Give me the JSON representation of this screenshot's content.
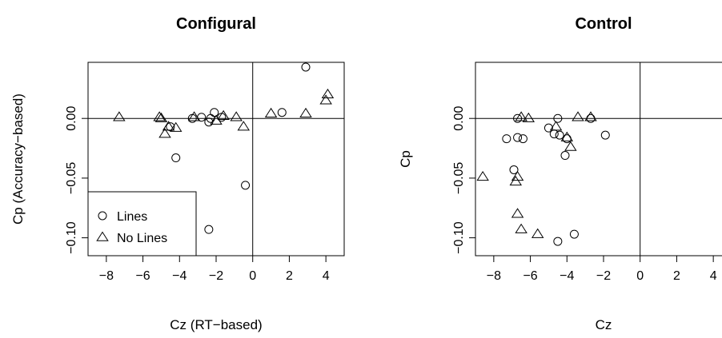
{
  "chart_data": [
    {
      "type": "scatter",
      "title": "Configural",
      "xlabel": "Cz (RT−based)",
      "ylabel": "Cp (Accuracy−based)",
      "xlim": [
        -9,
        5
      ],
      "ylim": [
        -0.115,
        0.047
      ],
      "xticks": [
        -8,
        -6,
        -4,
        -2,
        0,
        2,
        4
      ],
      "xtick_labels": [
        "−8",
        "−6",
        "−4",
        "−2",
        "0",
        "2",
        "4"
      ],
      "yticks": [
        -0.1,
        -0.05,
        0.0
      ],
      "ytick_labels": [
        "−0.10",
        "−0.05",
        "0.00"
      ],
      "reference_lines": {
        "x": 0,
        "y": 0
      },
      "legend": {
        "position": "bottom-left",
        "entries": [
          {
            "label": "Lines",
            "marker": "circle"
          },
          {
            "label": "No Lines",
            "marker": "triangle"
          }
        ]
      },
      "series": [
        {
          "name": "Lines",
          "marker": "circle",
          "points": [
            {
              "x": 2.9,
              "y": 0.043
            },
            {
              "x": 1.6,
              "y": 0.005
            },
            {
              "x": -2.1,
              "y": 0.005
            },
            {
              "x": -2.3,
              "y": 0.0
            },
            {
              "x": -2.4,
              "y": -0.003
            },
            {
              "x": -2.8,
              "y": 0.001
            },
            {
              "x": -1.7,
              "y": 0.001
            },
            {
              "x": -3.3,
              "y": 0.0
            },
            {
              "x": -4.5,
              "y": -0.007
            },
            {
              "x": -4.2,
              "y": -0.033
            },
            {
              "x": -0.4,
              "y": -0.056
            },
            {
              "x": -2.4,
              "y": -0.093
            }
          ]
        },
        {
          "name": "No Lines",
          "marker": "triangle",
          "points": [
            {
              "x": 4.1,
              "y": 0.02
            },
            {
              "x": 4.0,
              "y": 0.015
            },
            {
              "x": 2.9,
              "y": 0.004
            },
            {
              "x": 1.0,
              "y": 0.004
            },
            {
              "x": -7.3,
              "y": 0.001
            },
            {
              "x": -5.1,
              "y": 0.001
            },
            {
              "x": -5.0,
              "y": 0.0
            },
            {
              "x": -4.6,
              "y": -0.007
            },
            {
              "x": -4.2,
              "y": -0.008
            },
            {
              "x": -4.8,
              "y": -0.013
            },
            {
              "x": -3.2,
              "y": 0.001
            },
            {
              "x": -2.0,
              "y": -0.002
            },
            {
              "x": -1.6,
              "y": 0.002
            },
            {
              "x": -0.9,
              "y": 0.001
            },
            {
              "x": -0.5,
              "y": -0.007
            }
          ]
        }
      ]
    },
    {
      "type": "scatter",
      "title": "Control",
      "xlabel": "Cz",
      "ylabel": "Cp",
      "xlim": [
        -9,
        5
      ],
      "ylim": [
        -0.115,
        0.047
      ],
      "xticks": [
        -8,
        -6,
        -4,
        -2,
        0,
        2,
        4
      ],
      "xtick_labels": [
        "−8",
        "−6",
        "−4",
        "−2",
        "0",
        "2",
        "4"
      ],
      "yticks": [
        -0.1,
        -0.05,
        0.0
      ],
      "ytick_labels": [
        "−0.10",
        "−0.05",
        "0.00"
      ],
      "reference_lines": {
        "x": 0,
        "y": 0
      },
      "series": [
        {
          "name": "Lines",
          "marker": "circle",
          "points": [
            {
              "x": -6.7,
              "y": 0.0
            },
            {
              "x": -4.5,
              "y": 0.0
            },
            {
              "x": -2.7,
              "y": 0.0
            },
            {
              "x": -5.0,
              "y": -0.008
            },
            {
              "x": -4.7,
              "y": -0.013
            },
            {
              "x": -4.4,
              "y": -0.014
            },
            {
              "x": -4.0,
              "y": -0.017
            },
            {
              "x": -7.3,
              "y": -0.017
            },
            {
              "x": -6.7,
              "y": -0.016
            },
            {
              "x": -6.4,
              "y": -0.017
            },
            {
              "x": -1.9,
              "y": -0.014
            },
            {
              "x": -4.1,
              "y": -0.031
            },
            {
              "x": -6.9,
              "y": -0.043
            },
            {
              "x": -3.6,
              "y": -0.097
            },
            {
              "x": -4.5,
              "y": -0.103
            }
          ]
        },
        {
          "name": "No Lines",
          "marker": "triangle",
          "points": [
            {
              "x": -6.5,
              "y": 0.001
            },
            {
              "x": -6.1,
              "y": 0.0
            },
            {
              "x": -3.4,
              "y": 0.001
            },
            {
              "x": -2.7,
              "y": 0.001
            },
            {
              "x": -4.6,
              "y": -0.007
            },
            {
              "x": -4.0,
              "y": -0.016
            },
            {
              "x": -3.8,
              "y": -0.024
            },
            {
              "x": -8.6,
              "y": -0.049
            },
            {
              "x": -6.7,
              "y": -0.049
            },
            {
              "x": -6.8,
              "y": -0.053
            },
            {
              "x": -6.7,
              "y": -0.08
            },
            {
              "x": -6.5,
              "y": -0.093
            },
            {
              "x": -5.6,
              "y": -0.097
            }
          ]
        }
      ]
    }
  ]
}
